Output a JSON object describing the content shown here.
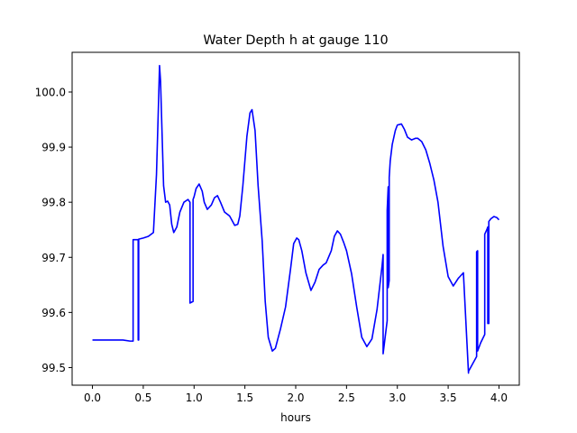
{
  "chart_data": {
    "type": "line",
    "title": "Water Depth h at gauge 110",
    "xlabel": "hours",
    "ylabel": "",
    "xlim": [
      -0.2,
      4.2
    ],
    "ylim": [
      99.468,
      100.072
    ],
    "xticks": [
      0.0,
      0.5,
      1.0,
      1.5,
      2.0,
      2.5,
      3.0,
      3.5,
      4.0
    ],
    "xtick_labels": [
      "0.0",
      "0.5",
      "1.0",
      "1.5",
      "2.0",
      "2.5",
      "3.0",
      "3.5",
      "4.0"
    ],
    "yticks": [
      99.5,
      99.6,
      99.7,
      99.8,
      99.9,
      100.0
    ],
    "ytick_labels": [
      "99.5",
      "99.6",
      "99.7",
      "99.8",
      "99.9",
      "100.0"
    ],
    "grid": false,
    "legend": "none",
    "series": [
      {
        "name": "",
        "color": "#0000ff",
        "x": [
          0.0,
          0.2,
          0.3,
          0.37,
          0.4,
          0.4,
          0.45,
          0.45,
          0.455,
          0.455,
          0.5,
          0.55,
          0.6,
          0.63,
          0.65,
          0.66,
          0.67,
          0.7,
          0.72,
          0.74,
          0.76,
          0.78,
          0.8,
          0.83,
          0.86,
          0.9,
          0.94,
          0.96,
          0.96,
          0.99,
          0.99,
          1.0,
          1.02,
          1.05,
          1.08,
          1.1,
          1.13,
          1.17,
          1.2,
          1.23,
          1.26,
          1.3,
          1.35,
          1.4,
          1.43,
          1.45,
          1.48,
          1.52,
          1.55,
          1.57,
          1.6,
          1.63,
          1.67,
          1.7,
          1.73,
          1.77,
          1.8,
          1.85,
          1.9,
          1.95,
          1.98,
          2.01,
          2.03,
          2.06,
          2.1,
          2.15,
          2.19,
          2.23,
          2.27,
          2.3,
          2.35,
          2.38,
          2.41,
          2.44,
          2.47,
          2.5,
          2.55,
          2.6,
          2.65,
          2.7,
          2.75,
          2.8,
          2.85,
          2.86,
          2.86,
          2.9,
          2.9,
          2.91,
          2.91,
          2.92,
          2.92,
          2.93,
          2.95,
          2.98,
          3.0,
          3.04,
          3.07,
          3.1,
          3.14,
          3.18,
          3.2,
          3.24,
          3.28,
          3.32,
          3.36,
          3.4,
          3.45,
          3.5,
          3.55,
          3.6,
          3.65,
          3.7,
          3.7,
          3.78,
          3.78,
          3.79,
          3.79,
          3.82,
          3.86,
          3.86,
          3.88,
          3.89,
          3.89,
          3.9,
          3.9,
          3.92,
          3.95,
          3.98,
          4.0
        ],
        "y": [
          99.55,
          99.55,
          99.55,
          99.548,
          99.548,
          99.732,
          99.732,
          99.55,
          99.55,
          99.733,
          99.735,
          99.738,
          99.745,
          99.85,
          99.98,
          100.048,
          100.02,
          99.83,
          99.8,
          99.802,
          99.795,
          99.76,
          99.745,
          99.755,
          99.782,
          99.8,
          99.805,
          99.8,
          99.617,
          99.62,
          99.805,
          99.81,
          99.825,
          99.833,
          99.82,
          99.8,
          99.787,
          99.795,
          99.808,
          99.812,
          99.8,
          99.782,
          99.775,
          99.758,
          99.76,
          99.775,
          99.83,
          99.92,
          99.962,
          99.968,
          99.93,
          99.83,
          99.73,
          99.62,
          99.555,
          99.53,
          99.535,
          99.57,
          99.61,
          99.68,
          99.725,
          99.735,
          99.732,
          99.712,
          99.672,
          99.64,
          99.655,
          99.678,
          99.686,
          99.69,
          99.712,
          99.738,
          99.748,
          99.742,
          99.728,
          99.712,
          99.67,
          99.61,
          99.555,
          99.538,
          99.552,
          99.605,
          99.685,
          99.705,
          99.525,
          99.585,
          99.785,
          99.828,
          99.645,
          99.658,
          99.845,
          99.875,
          99.905,
          99.93,
          99.94,
          99.942,
          99.932,
          99.918,
          99.913,
          99.916,
          99.916,
          99.91,
          99.895,
          99.87,
          99.84,
          99.8,
          99.72,
          99.665,
          99.648,
          99.662,
          99.672,
          99.49,
          99.493,
          99.52,
          99.71,
          99.712,
          99.53,
          99.545,
          99.56,
          99.742,
          99.75,
          99.755,
          99.58,
          99.58,
          99.765,
          99.77,
          99.774,
          99.772,
          99.768
        ]
      }
    ]
  }
}
